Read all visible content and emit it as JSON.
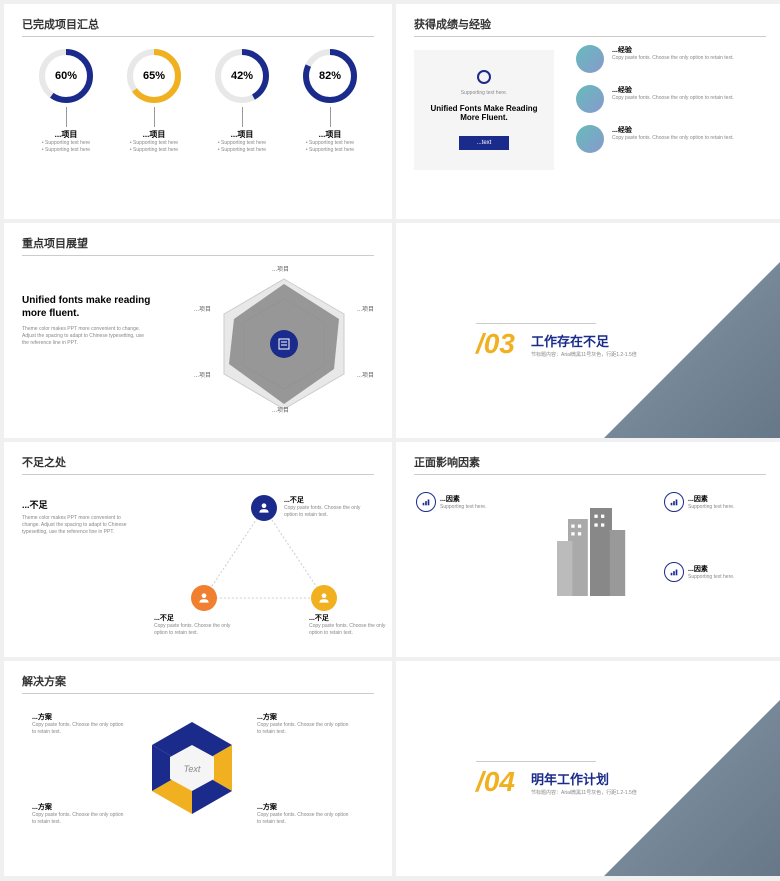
{
  "colors": {
    "navy": "#1a2b8c",
    "yellow": "#f0b020",
    "orange": "#f08030",
    "gray": "#888888",
    "lightgray": "#e8e8e8"
  },
  "s1": {
    "title": "已完成项目汇总",
    "rings": [
      {
        "pct": "60%",
        "val": 60,
        "color": "#1a2b8c",
        "label": "...项目",
        "sub1": "Supporting text here",
        "sub2": "Supporting text here"
      },
      {
        "pct": "65%",
        "val": 65,
        "color": "#f0b020",
        "label": "...项目",
        "sub1": "Supporting text here",
        "sub2": "Supporting text here"
      },
      {
        "pct": "42%",
        "val": 42,
        "color": "#1a2b8c",
        "label": "...项目",
        "sub1": "Supporting text here",
        "sub2": "Supporting text here"
      },
      {
        "pct": "82%",
        "val": 82,
        "color": "#1a2b8c",
        "label": "...项目",
        "sub1": "Supporting text here",
        "sub2": "Supporting text here"
      }
    ]
  },
  "s2": {
    "title": "获得成绩与经验",
    "left_sub": "Supporting text here.",
    "left_main": "Unified Fonts Make Reading More Fluent.",
    "btn": "...text",
    "items": [
      {
        "h": "...经验",
        "d": "Copy paste fonts. Choose the only option to retain text."
      },
      {
        "h": "...经验",
        "d": "Copy paste fonts. Choose the only option to retain text."
      },
      {
        "h": "...经验",
        "d": "Copy paste fonts. Choose the only option to retain text."
      }
    ]
  },
  "s3": {
    "title": "重点项目展望",
    "h": "Unified fonts make reading more fluent.",
    "d": "Theme color makes PPT more convenient to change. Adjust the spacing to adapt to Chinese typesetting, use the reference line in PPT.",
    "labels": [
      "...项目",
      "...项目",
      "...项目",
      "...项目",
      "...项目",
      "...项目"
    ]
  },
  "s4": {
    "num": "/03",
    "title": "工作存在不足",
    "sub": "节标题内容：Arial微黑11号灰色，行距1.2-1.5倍"
  },
  "s5": {
    "title": "不足之处",
    "left_h": "...不足",
    "left_d": "Theme color makes PPT more convenient to change. Adjust the spacing to adapt to Chinese typesetting, use the reference line in PPT.",
    "nodes": [
      {
        "h": "...不足",
        "d": "Copy paste fonts. Choose the only option to retain text.",
        "color": "#1a2b8c"
      },
      {
        "h": "...不足",
        "d": "Copy paste fonts. Choose the only option to retain text.",
        "color": "#f08030"
      },
      {
        "h": "...不足",
        "d": "Copy paste fonts. Choose the only option to retain text.",
        "color": "#f0b020"
      }
    ]
  },
  "s6": {
    "title": "正面影响因素",
    "factors": [
      {
        "h": "...因素",
        "d": "Supporting text here."
      },
      {
        "h": "...因素",
        "d": "Supporting text here."
      },
      {
        "h": "...因素",
        "d": "Supporting text here."
      }
    ]
  },
  "s7": {
    "title": "解决方案",
    "center": "Text",
    "plans": [
      {
        "h": "...方案",
        "d": "Copy paste fonts. Choose the only option to retain text."
      },
      {
        "h": "...方案",
        "d": "Copy paste fonts. Choose the only option to retain text."
      },
      {
        "h": "...方案",
        "d": "Copy paste fonts. Choose the only option to retain text."
      },
      {
        "h": "...方案",
        "d": "Copy paste fonts. Choose the only option to retain text."
      }
    ],
    "seg_colors": [
      "#1a2b8c",
      "#f0b020",
      "#1a2b8c",
      "#f0b020",
      "#1a2b8c",
      "#f0b020"
    ]
  },
  "s8": {
    "num": "/04",
    "title": "明年工作计划",
    "sub": "节标题内容：Arial微黑11号灰色，行距1.2-1.5倍"
  }
}
